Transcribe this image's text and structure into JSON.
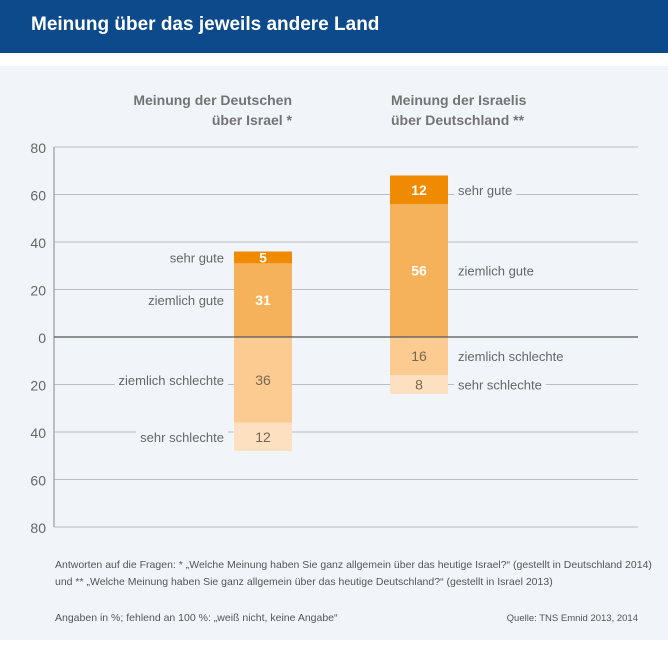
{
  "header": {
    "title": "Meinung über das jeweils andere Land"
  },
  "chart_data": {
    "type": "bar",
    "stacked": "diverging",
    "categories": [
      "Meinung der Deutschen über Israel *",
      "Meinung der Israelis über Deutschland **"
    ],
    "category_lines": [
      [
        "Meinung der Deutschen",
        "über Israel *"
      ],
      [
        "Meinung der Israelis",
        "über Deutschland **"
      ]
    ],
    "yticks": [
      "80",
      "60",
      "40",
      "20",
      "0",
      "20",
      "40",
      "60",
      "80"
    ],
    "ylim": [
      -80,
      80
    ],
    "grid": true,
    "series": [
      {
        "name": "sehr gute",
        "values": [
          5,
          12
        ],
        "direction": "positive",
        "color": "#f08a00"
      },
      {
        "name": "ziemlich gute",
        "values": [
          31,
          56
        ],
        "direction": "positive",
        "color": "#f6b25a"
      },
      {
        "name": "ziemlich schlechte",
        "values": [
          36,
          16
        ],
        "direction": "negative",
        "color": "#fbcb92"
      },
      {
        "name": "sehr schlechte",
        "values": [
          12,
          8
        ],
        "direction": "negative",
        "color": "#fde0c0"
      }
    ]
  },
  "notes": {
    "line1": "Antworten auf die Fragen: * „Welche Meinung haben Sie ganz allgemein über das heutige Israel?“ (gestellt in Deutschland 2014)",
    "line2": "und ** „Welche Meinung haben Sie ganz allgemein über das heutige Deutschland?“ (gestellt in Israel 2013)",
    "line3": "Angaben in %; fehlend an 100 %: „weiß nicht, keine Angabe“",
    "source": "Quelle: TNS Emnid 2013, 2014"
  }
}
